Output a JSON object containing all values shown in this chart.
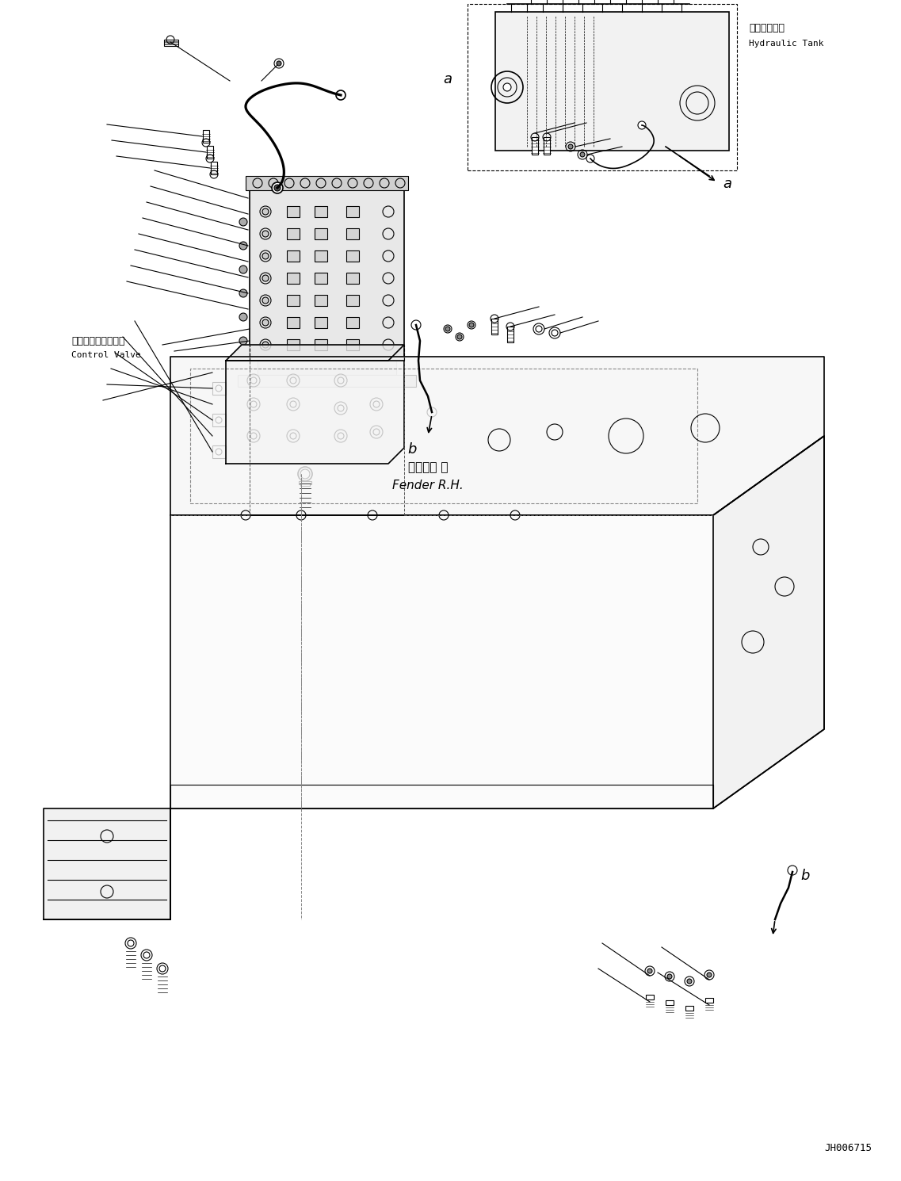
{
  "bg_color": "#ffffff",
  "line_color": "#000000",
  "fig_width": 11.37,
  "fig_height": 14.9,
  "dpi": 100,
  "doc_number": "JH006715",
  "labels": {
    "hydraulic_tank_ja": "作動油タンク",
    "hydraulic_tank_en": "Hydraulic Tank",
    "control_valve_ja": "コントロールバルブ",
    "control_valve_en": "Control Valve",
    "fender_ja": "フェンダ 右",
    "fender_en": "Fender R.H.",
    "label_a": "a",
    "label_b": "b"
  }
}
